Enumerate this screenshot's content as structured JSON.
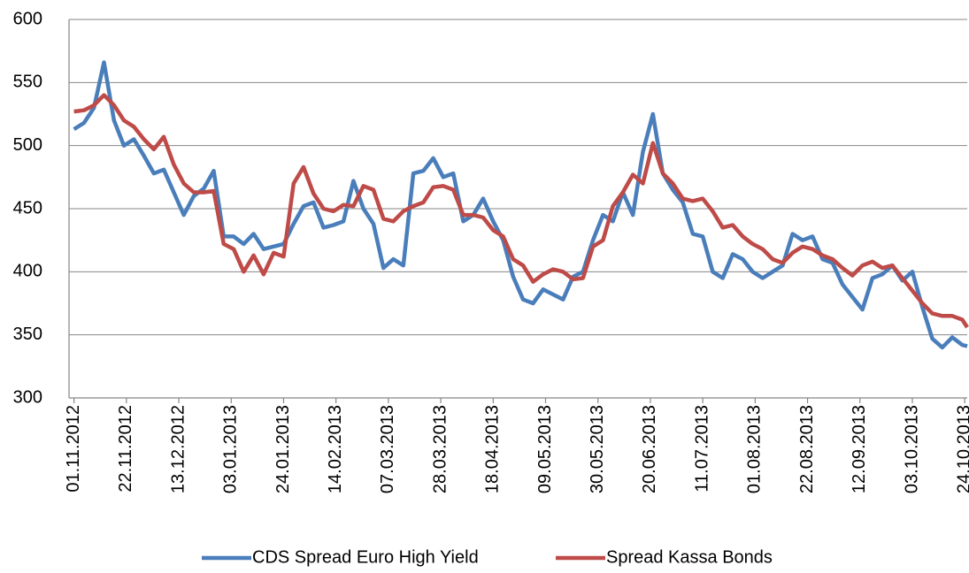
{
  "chart_data": {
    "type": "line",
    "x": [
      "01.11.2012",
      "05.11.2012",
      "09.11.2012",
      "13.11.2012",
      "17.11.2012",
      "21.11.2012",
      "25.11.2012",
      "29.11.2012",
      "03.12.2012",
      "07.12.2012",
      "11.12.2012",
      "15.12.2012",
      "19.12.2012",
      "23.12.2012",
      "27.12.2012",
      "31.12.2012",
      "04.01.2013",
      "08.01.2013",
      "12.01.2013",
      "16.01.2013",
      "20.01.2013",
      "24.01.2013",
      "28.01.2013",
      "01.02.2013",
      "05.02.2013",
      "09.02.2013",
      "13.02.2013",
      "17.02.2013",
      "21.02.2013",
      "25.02.2013",
      "01.03.2013",
      "05.03.2013",
      "09.03.2013",
      "13.03.2013",
      "17.03.2013",
      "21.03.2013",
      "25.03.2013",
      "29.03.2013",
      "02.04.2013",
      "06.04.2013",
      "10.04.2013",
      "14.04.2013",
      "18.04.2013",
      "22.04.2013",
      "26.04.2013",
      "30.04.2013",
      "04.05.2013",
      "08.05.2013",
      "12.05.2013",
      "16.05.2013",
      "20.05.2013",
      "24.05.2013",
      "28.05.2013",
      "01.06.2013",
      "05.06.2013",
      "09.06.2013",
      "13.06.2013",
      "17.06.2013",
      "21.06.2013",
      "25.06.2013",
      "29.06.2013",
      "03.07.2013",
      "07.07.2013",
      "11.07.2013",
      "15.07.2013",
      "19.07.2013",
      "23.07.2013",
      "27.07.2013",
      "31.07.2013",
      "04.08.2013",
      "08.08.2013",
      "12.08.2013",
      "16.08.2013",
      "20.08.2013",
      "24.08.2013",
      "28.08.2013",
      "01.09.2013",
      "05.09.2013",
      "09.09.2013",
      "13.09.2013",
      "17.09.2013",
      "21.09.2013",
      "25.09.2013",
      "29.09.2013",
      "03.10.2013",
      "07.10.2013",
      "11.10.2013",
      "15.10.2013",
      "19.10.2013",
      "23.10.2013",
      "25.10.2013"
    ],
    "series": [
      {
        "name": "CDS Spread Euro High Yield",
        "color": "#4a7ebb",
        "values": [
          513,
          518,
          530,
          566,
          520,
          500,
          505,
          492,
          478,
          481,
          463,
          445,
          460,
          466,
          480,
          428,
          428,
          422,
          430,
          418,
          420,
          422,
          438,
          452,
          455,
          435,
          437,
          440,
          472,
          450,
          438,
          403,
          410,
          405,
          478,
          480,
          490,
          475,
          478,
          440,
          445,
          458,
          440,
          425,
          396,
          378,
          375,
          386,
          382,
          378,
          396,
          400,
          425,
          445,
          440,
          463,
          445,
          495,
          525,
          478,
          465,
          455,
          430,
          428,
          400,
          395,
          414,
          410,
          400,
          395,
          400,
          405,
          430,
          425,
          428,
          410,
          407,
          390,
          380,
          370,
          395,
          398,
          405,
          393,
          400,
          372,
          347,
          340,
          348,
          342,
          341
        ]
      },
      {
        "name": "Spread Kassa Bonds",
        "color": "#be4b48",
        "values": [
          527,
          528,
          532,
          540,
          532,
          520,
          515,
          505,
          497,
          507,
          485,
          470,
          463,
          463,
          464,
          422,
          418,
          400,
          413,
          398,
          415,
          412,
          470,
          483,
          462,
          450,
          448,
          453,
          452,
          468,
          465,
          442,
          440,
          448,
          452,
          455,
          467,
          468,
          465,
          445,
          445,
          443,
          433,
          428,
          410,
          405,
          392,
          398,
          402,
          400,
          394,
          395,
          420,
          425,
          452,
          463,
          477,
          470,
          502,
          478,
          470,
          458,
          456,
          458,
          448,
          435,
          437,
          428,
          422,
          418,
          410,
          407,
          415,
          420,
          418,
          413,
          410,
          403,
          397,
          405,
          408,
          403,
          405,
          395,
          385,
          375,
          367,
          365,
          365,
          362,
          356
        ]
      }
    ],
    "xlim": [
      "30.10.2012",
      "25.10.2013"
    ],
    "xticks": [
      "01.11.2012",
      "22.11.2012",
      "13.12.2012",
      "03.01.2013",
      "24.01.2013",
      "14.02.2013",
      "07.03.2013",
      "28.03.2013",
      "18.04.2013",
      "09.05.2013",
      "30.05.2013",
      "20.06.2013",
      "11.07.2013",
      "01.08.2013",
      "22.08.2013",
      "12.09.2013",
      "03.10.2013",
      "24.10.2013"
    ],
    "ylim": [
      300,
      600
    ],
    "yticks": [
      300,
      350,
      400,
      450,
      500,
      550,
      600
    ],
    "grid": true,
    "legend": "bottom"
  }
}
